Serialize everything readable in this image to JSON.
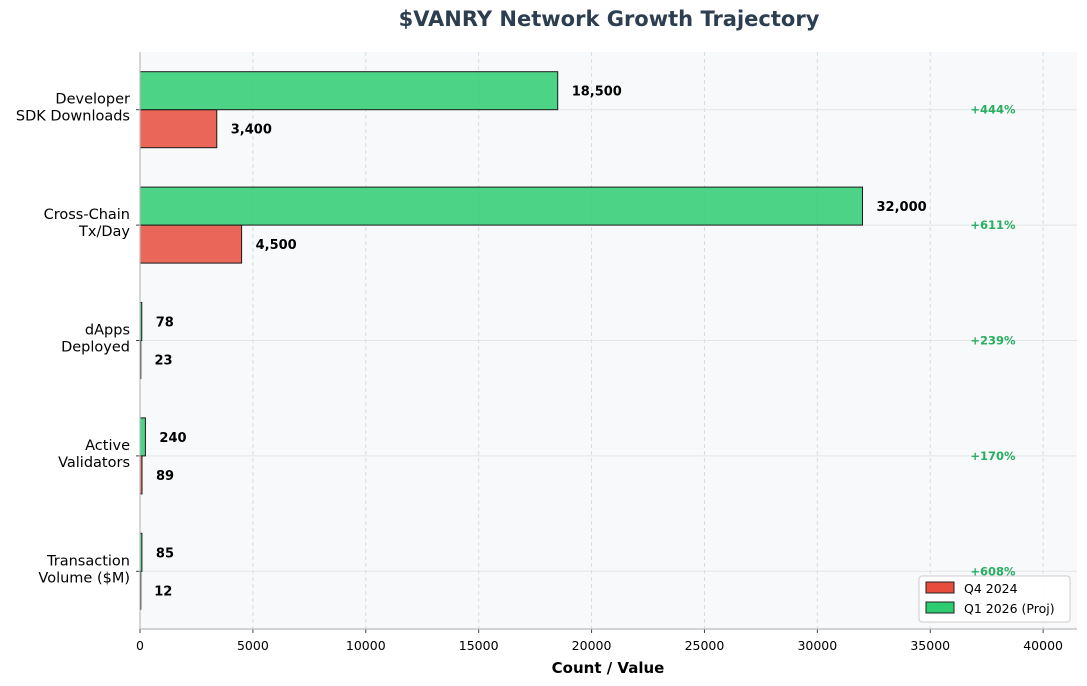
{
  "chart_data": {
    "type": "bar",
    "orientation": "horizontal",
    "title": "$VANRY Network Growth Trajectory",
    "xlabel": "Count / Value",
    "ylabel": "",
    "xlim": [
      0,
      41500
    ],
    "xticks": [
      0,
      5000,
      10000,
      15000,
      20000,
      25000,
      30000,
      35000,
      40000
    ],
    "grid": true,
    "legend_position": "bottom-right",
    "categories": [
      [
        "Developer",
        "SDK Downloads"
      ],
      [
        "Cross-Chain",
        "Tx/Day"
      ],
      [
        "dApps",
        "Deployed"
      ],
      [
        "Active",
        "Validators"
      ],
      [
        "Transaction",
        "Volume ($M)"
      ]
    ],
    "series": [
      {
        "name": "Q4 2024",
        "color": "#e74c3c",
        "values": [
          3400,
          4500,
          23,
          89,
          12
        ],
        "labels": [
          "3,400",
          "4,500",
          "23",
          "89",
          "12"
        ]
      },
      {
        "name": "Q1 2026 (Proj)",
        "color": "#2ecc71",
        "values": [
          18500,
          32000,
          78,
          240,
          85
        ],
        "labels": [
          "18,500",
          "32,000",
          "78",
          "240",
          "85"
        ]
      }
    ],
    "growth_labels": [
      "+444%",
      "+611%",
      "+239%",
      "+170%",
      "+608%"
    ],
    "growth_color": "#27ae60",
    "title_color": "#2c3e50"
  }
}
